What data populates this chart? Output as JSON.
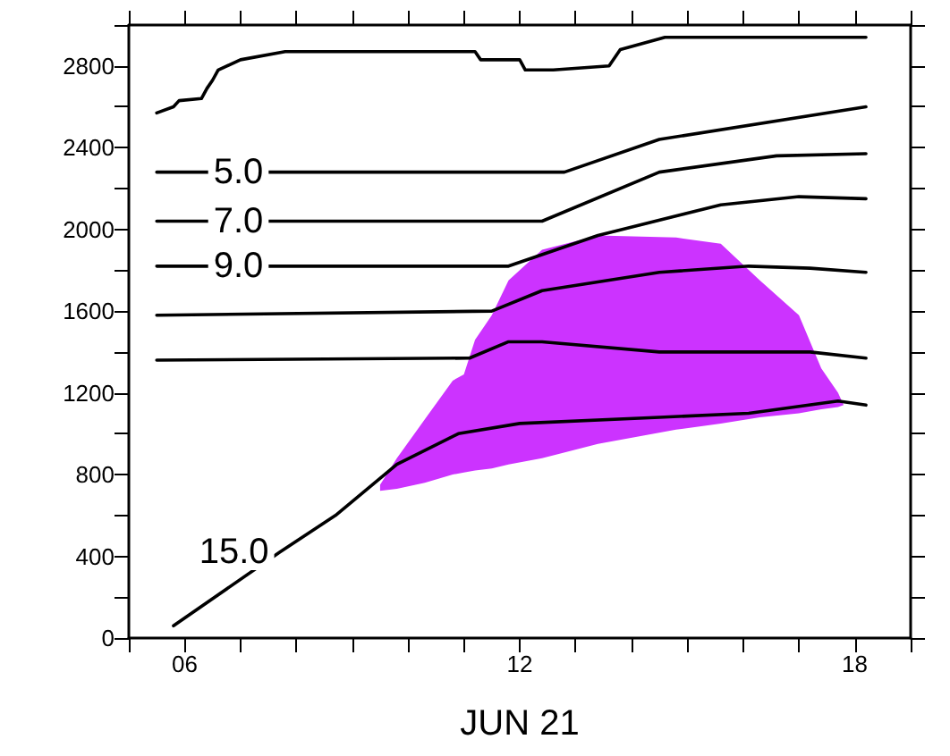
{
  "chart_data": {
    "type": "line",
    "xlabel": "JUN 21",
    "xlim": [
      5,
      19
    ],
    "xticks": [
      {
        "value": 5,
        "label": null
      },
      {
        "value": 6,
        "label": "06"
      },
      {
        "value": 7,
        "label": null
      },
      {
        "value": 8,
        "label": null
      },
      {
        "value": 9,
        "label": null
      },
      {
        "value": 10,
        "label": null
      },
      {
        "value": 11,
        "label": null
      },
      {
        "value": 12,
        "label": "12"
      },
      {
        "value": 13,
        "label": null
      },
      {
        "value": 14,
        "label": null
      },
      {
        "value": 15,
        "label": null
      },
      {
        "value": 16,
        "label": null
      },
      {
        "value": 17,
        "label": null
      },
      {
        "value": 18,
        "label": "18"
      },
      {
        "value": 19,
        "label": null
      }
    ],
    "ylim": [
      0,
      3000
    ],
    "yticks": [
      0,
      {
        "value": 200,
        "label": null
      },
      400,
      {
        "value": 600,
        "label": null
      },
      800,
      {
        "value": 1000,
        "label": null
      },
      1200,
      {
        "value": 1400,
        "label": null
      },
      1600,
      {
        "value": 1800,
        "label": null
      },
      2000,
      {
        "value": 2200,
        "label": null
      },
      2400,
      {
        "value": 2600,
        "label": null
      },
      2800,
      {
        "value": 3000,
        "label": null
      }
    ],
    "grid": false,
    "legend": false,
    "marker": "none",
    "line_style": "solid",
    "series": [
      {
        "type": "area",
        "color": "#cc33ff",
        "x": [
          9.5,
          9.8,
          10.3,
          10.8,
          11.0,
          11.2,
          11.5,
          11.8,
          12.4,
          13.4,
          14.8,
          15.6,
          16.3,
          17.0,
          17.4,
          17.7,
          17.8
        ],
        "values": [
          null,
          null,
          null,
          null,
          null,
          null,
          null,
          null,
          null,
          null,
          null,
          null,
          null,
          null,
          null,
          null,
          null
        ],
        "upper": [
          750,
          880,
          1070,
          1260,
          1290,
          1460,
          1580,
          1750,
          1900,
          1970,
          1960,
          1930,
          1750,
          1580,
          1320,
          1200,
          1140
        ],
        "lower": [
          720,
          730,
          760,
          800,
          810,
          820,
          830,
          850,
          880,
          950,
          1020,
          1050,
          1080,
          1100,
          1120,
          1130,
          1140
        ]
      },
      {
        "color": "#000000",
        "x": [
          5.5,
          5.8,
          5.9,
          6.3,
          6.4,
          6.5,
          6.6,
          7.0,
          7.8,
          11.2,
          11.3,
          12.0,
          12.1,
          12.6,
          13.6,
          13.8,
          14.6,
          18.2
        ],
        "values": [
          2570,
          2600,
          2630,
          2640,
          2690,
          2730,
          2780,
          2830,
          2870,
          2870,
          2830,
          2830,
          2780,
          2780,
          2800,
          2880,
          2940,
          2940
        ]
      },
      {
        "name": "5.0",
        "color": "#000000",
        "x": [
          5.5,
          7.6,
          12.8,
          14.5,
          18.2
        ],
        "values": [
          2280,
          2280,
          2280,
          2440,
          2600
        ]
      },
      {
        "name": "7.0",
        "color": "#000000",
        "x": [
          5.5,
          7.6,
          12.4,
          14.5,
          16.6,
          18.2
        ],
        "values": [
          2040,
          2040,
          2040,
          2280,
          2360,
          2370
        ]
      },
      {
        "name": "9.0",
        "color": "#000000",
        "x": [
          5.5,
          7.6,
          11.8,
          13.4,
          15.6,
          17.0,
          18.2
        ],
        "values": [
          1820,
          1820,
          1820,
          1970,
          2120,
          2160,
          2150
        ]
      },
      {
        "color": "#000000",
        "x": [
          5.5,
          11.5,
          12.4,
          14.5,
          16.1,
          17.2,
          18.2
        ],
        "values": [
          1580,
          1600,
          1700,
          1790,
          1820,
          1810,
          1790
        ]
      },
      {
        "color": "#000000",
        "x": [
          5.5,
          11.1,
          11.8,
          12.4,
          14.5,
          17.2,
          18.2
        ],
        "values": [
          1360,
          1370,
          1450,
          1450,
          1400,
          1400,
          1370
        ]
      },
      {
        "name": "15.0",
        "color": "#000000",
        "x": [
          5.8,
          7.7,
          8.7,
          9.8,
          10.9,
          12.0,
          14.5,
          16.1,
          17.7,
          18.2
        ],
        "values": [
          60,
          420,
          600,
          850,
          1000,
          1050,
          1080,
          1100,
          1160,
          1140
        ]
      }
    ]
  }
}
